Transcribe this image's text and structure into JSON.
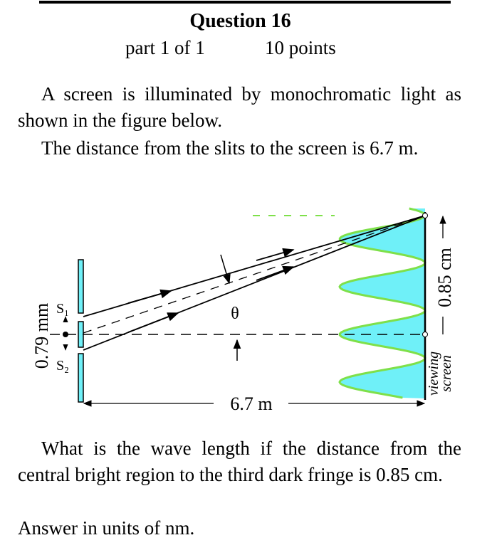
{
  "header": {
    "title": "Question 16",
    "part": "part 1 of 1",
    "points": "10 points"
  },
  "body": {
    "paragraphs": [
      "A screen is illuminated by monochromatic light as shown in the figure below.",
      "The distance from the slits to the screen is 6.7 m."
    ]
  },
  "figure": {
    "slit1": "S₁",
    "slit2": "S₂",
    "angle": "θ",
    "distance": "6.7 m",
    "slit_separation": "0.79 mm",
    "fringe_distance": "0.85 cm",
    "screen_label": [
      "viewing",
      "screen"
    ]
  },
  "question": {
    "text": "What is the wave length if the distance from the central bright region to the third dark fringe is 0.85 cm.",
    "answer_prompt": "Answer in units of nm."
  }
}
